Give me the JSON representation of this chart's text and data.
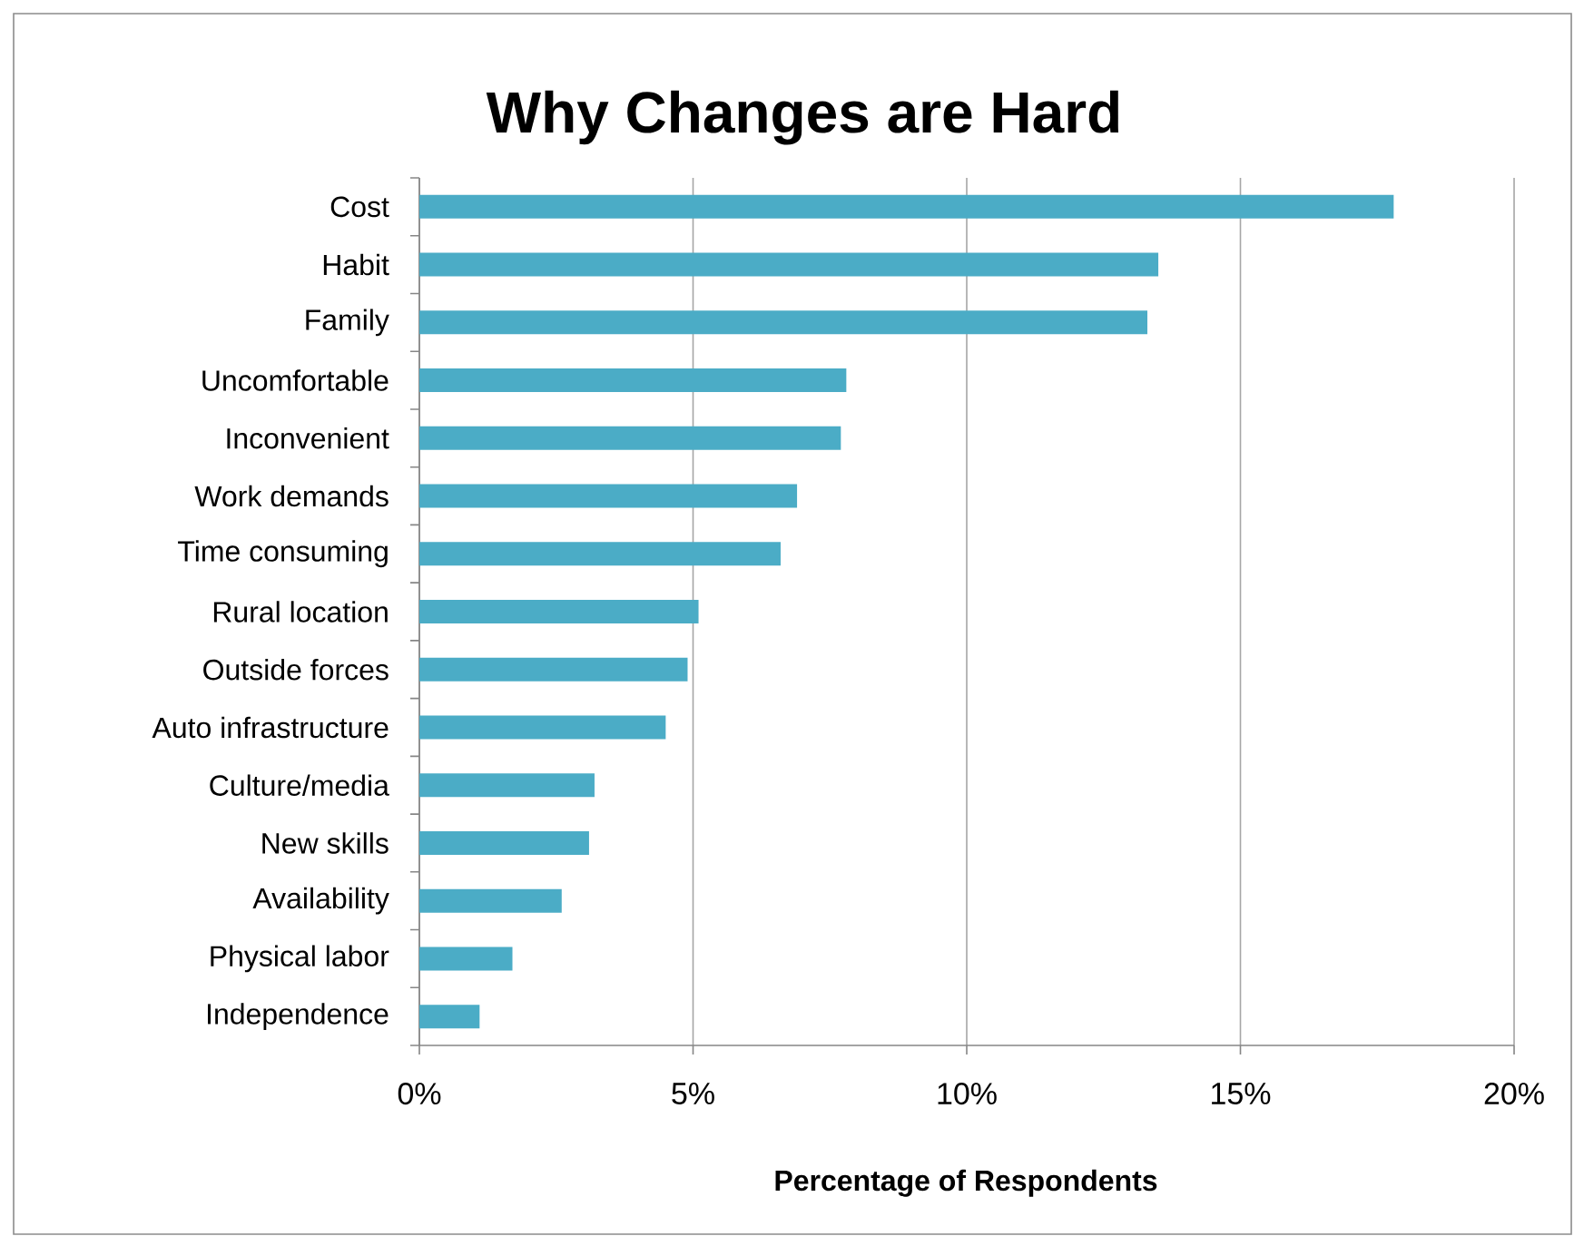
{
  "chart_data": {
    "type": "bar",
    "orientation": "horizontal",
    "title": "Why Changes are Hard",
    "xlabel": "Percentage of Respondents",
    "categories": [
      "Cost",
      "Habit",
      "Family",
      "Uncomfortable",
      "Inconvenient",
      "Work demands",
      "Time consuming",
      "Rural location",
      "Outside forces",
      "Auto infrastructure",
      "Culture/media",
      "New skills",
      "Availability",
      "Physical labor",
      "Independence"
    ],
    "values": [
      17.8,
      13.5,
      13.3,
      7.8,
      7.7,
      6.9,
      6.6,
      5.1,
      4.9,
      4.5,
      3.2,
      3.1,
      2.6,
      1.7,
      1.1
    ],
    "color": "#4bacc6",
    "xlim": [
      0,
      20
    ],
    "xticks": [
      {
        "value": 0,
        "label": "0%"
      },
      {
        "value": 5,
        "label": "5%"
      },
      {
        "value": 10,
        "label": "10%"
      },
      {
        "value": 15,
        "label": "15%"
      },
      {
        "value": 20,
        "label": "20%"
      }
    ],
    "grid": "x"
  }
}
